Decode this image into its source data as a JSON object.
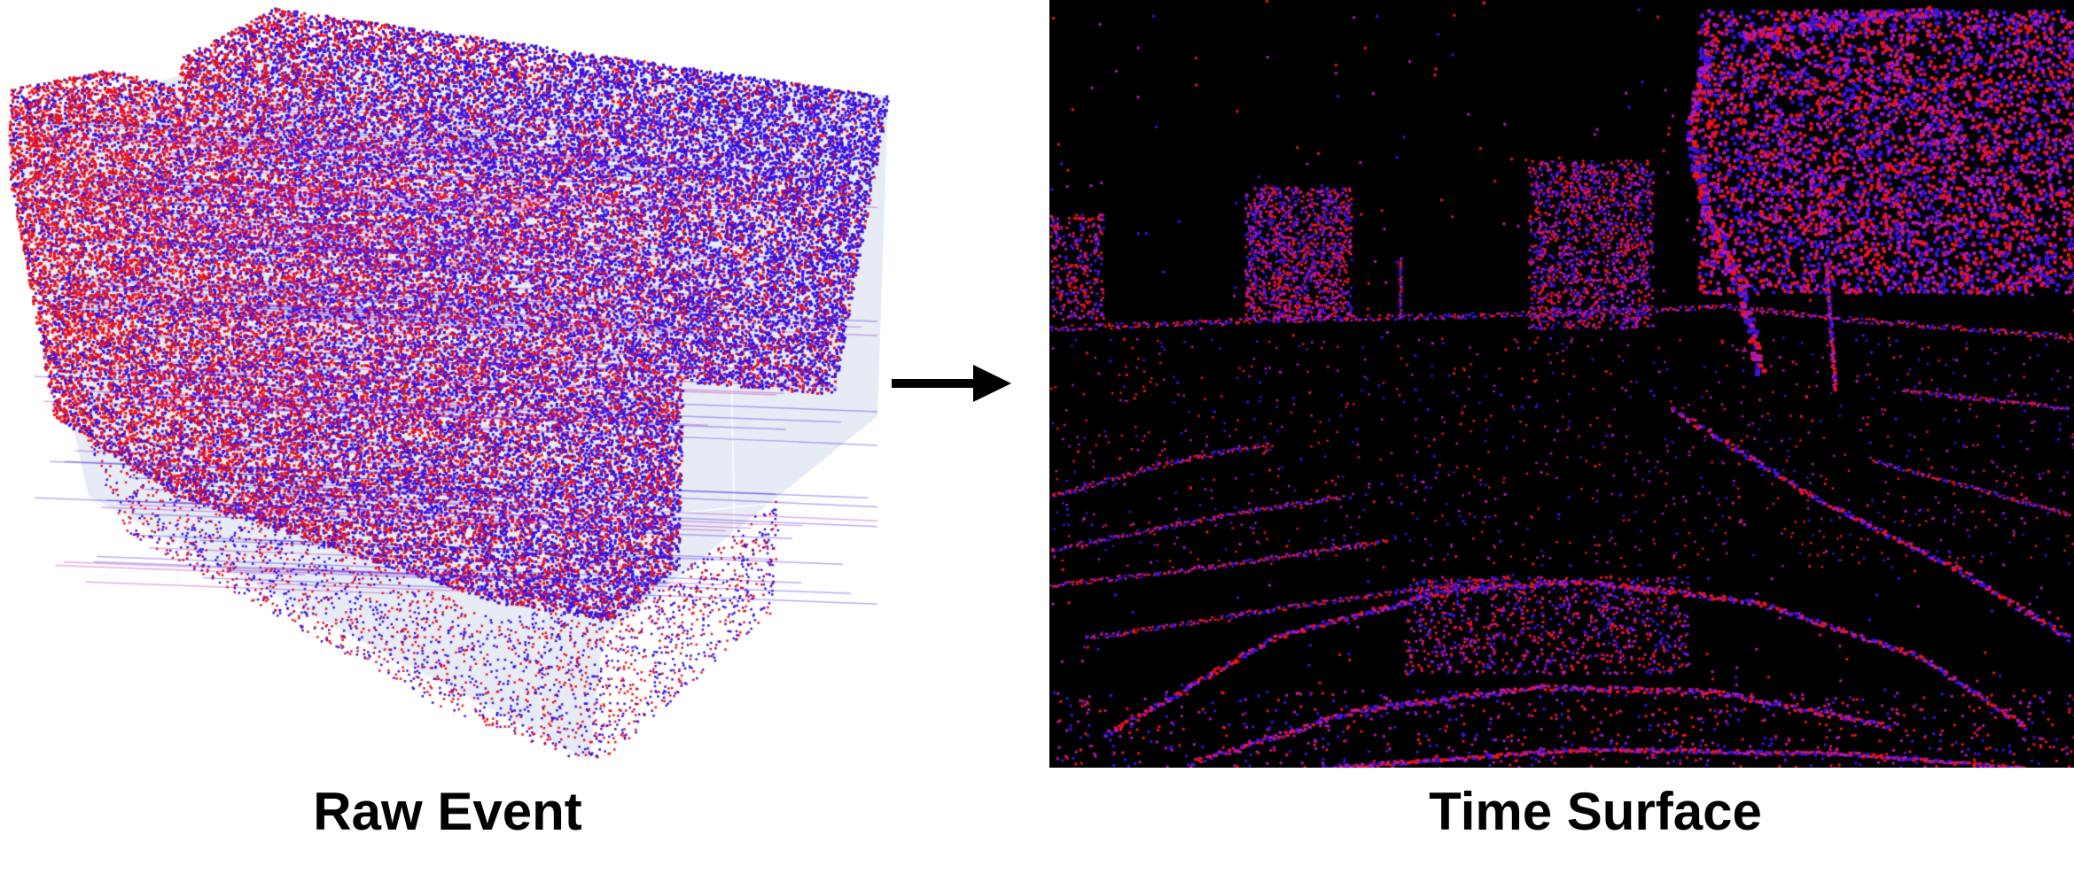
{
  "captions": {
    "left": "Raw Event",
    "right": "Time Surface"
  },
  "colors": {
    "positive_event": "#e8141e",
    "negative_event": "#3a12e0",
    "magenta_mix": "#b01ab0",
    "box_face": "#e6ebf5",
    "box_grid": "#f6f8fd",
    "background": "#ffffff",
    "surface_background": "#000000",
    "arrow": "#000000"
  },
  "icons": {
    "arrow": "right-arrow-icon"
  }
}
